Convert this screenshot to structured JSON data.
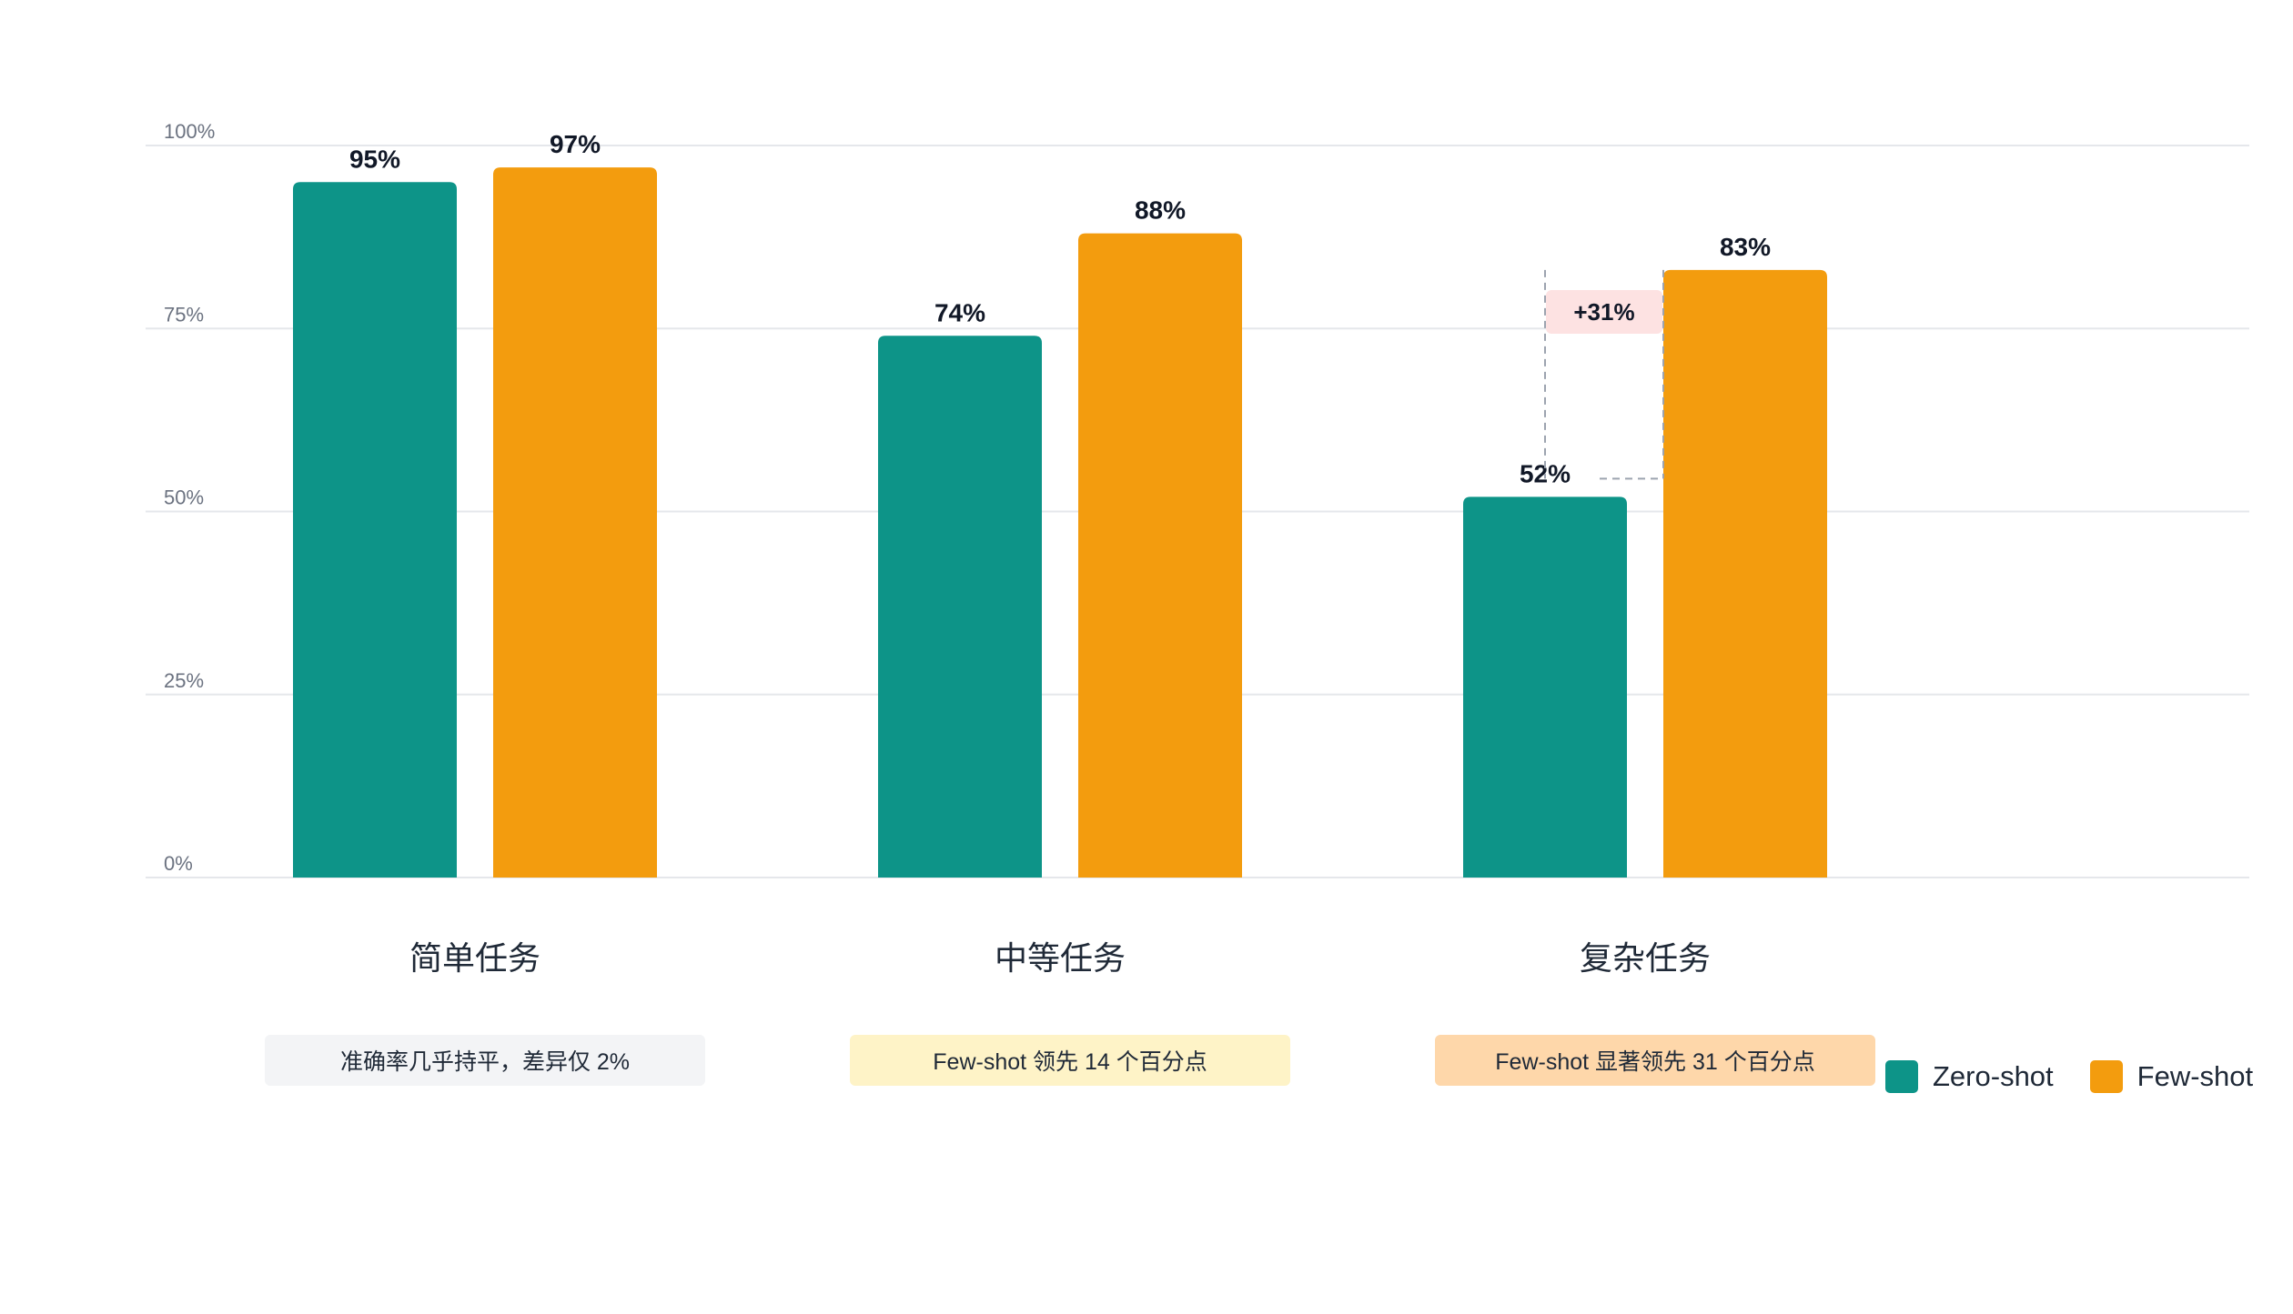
{
  "chart_data": {
    "type": "bar",
    "categories": [
      "简单任务",
      "中等任务",
      "复杂任务"
    ],
    "series": [
      {
        "name": "Zero-shot",
        "color": "#0d9488",
        "values": [
          95,
          74,
          52
        ]
      },
      {
        "name": "Few-shot",
        "color": "#f39c0e",
        "values": [
          97,
          88,
          83
        ]
      }
    ],
    "value_labels": [
      [
        "95%",
        "74%",
        "52%"
      ],
      [
        "97%",
        "88%",
        "83%"
      ]
    ],
    "ylim": [
      0,
      100
    ],
    "yticks": [
      0,
      25,
      50,
      75,
      100
    ],
    "ytick_labels": [
      "0%",
      "25%",
      "50%",
      "75%",
      "100%"
    ],
    "grid": true,
    "legend_position": "bottom-right",
    "annotation": {
      "text": "+31%",
      "category": "复杂任务",
      "from": 52,
      "to": 83,
      "bg": "#fde2e2"
    },
    "notes": [
      {
        "text": "准确率几乎持平，差异仅 2%",
        "bg": "#f3f4f6"
      },
      {
        "text": "Few-shot 领先 14 个百分点",
        "bg": "#fef3c7"
      },
      {
        "text": "Few-shot 显著领先 31 个百分点",
        "bg": "#fed7aa"
      }
    ]
  }
}
